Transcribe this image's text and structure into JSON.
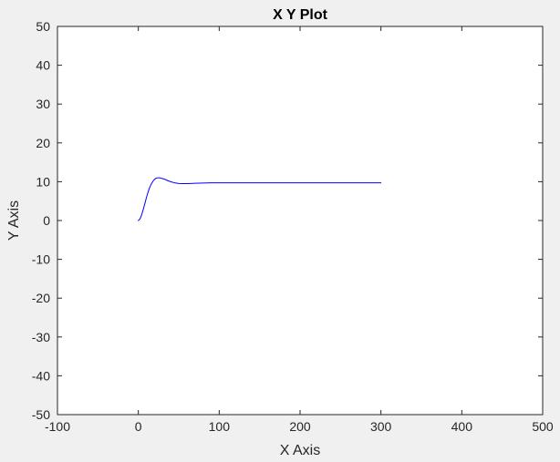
{
  "chart_data": {
    "type": "line",
    "title": "X Y Plot",
    "xlabel": "X Axis",
    "ylabel": "Y Axis",
    "xlim": [
      -100,
      500
    ],
    "ylim": [
      -50,
      50
    ],
    "xticks": [
      -100,
      0,
      100,
      200,
      300,
      400,
      500
    ],
    "yticks": [
      -50,
      -40,
      -30,
      -20,
      -10,
      0,
      10,
      20,
      30,
      40,
      50
    ],
    "grid": false,
    "legend": "none",
    "series": [
      {
        "color": "#0000ff",
        "x": [
          0,
          2,
          4,
          6,
          8,
          10,
          12,
          14,
          16,
          18,
          20,
          22,
          24,
          26,
          28,
          30,
          33,
          36,
          40,
          45,
          50,
          55,
          60,
          65,
          70,
          80,
          90,
          100,
          120,
          150,
          200,
          250,
          300
        ],
        "y": [
          0,
          0.4,
          1.4,
          2.8,
          4.3,
          5.9,
          7.3,
          8.5,
          9.4,
          10.1,
          10.6,
          10.9,
          11.0,
          11.0,
          10.9,
          10.8,
          10.6,
          10.3,
          10.0,
          9.7,
          9.55,
          9.5,
          9.5,
          9.55,
          9.6,
          9.65,
          9.7,
          9.7,
          9.7,
          9.7,
          9.7,
          9.7,
          9.7
        ]
      }
    ]
  }
}
